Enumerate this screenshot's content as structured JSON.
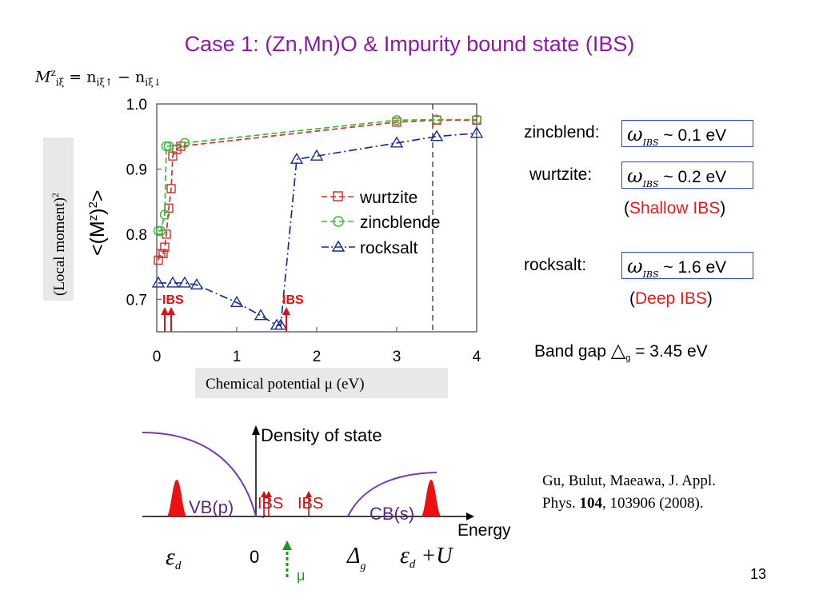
{
  "slide": {
    "title": "Case 1: (Zn,Mn)O & Impurity bound state (IBS)",
    "formula": {
      "M": "M",
      "sub": "iξ",
      "sup": "z",
      "rhs": " = n",
      "sub_up": "iξ↑",
      "minus": " − n",
      "sub_down": "iξ↓"
    },
    "page_number": "13",
    "citation": {
      "line1": "Gu, Bulut, Maeawa, J. Appl.",
      "line2_prefix": "Phys. ",
      "volume": "104",
      "line2_suffix": ", 103906 (2008)."
    }
  },
  "plot": {
    "ylabel": "<(M",
    "ylabel_sup": "z",
    "ylabel_end": ")",
    "ylabel_sup2": "2",
    "ylabel_close": ">",
    "ylabel_box": "(Local moment)",
    "ylabel_box_sup": "2",
    "xlabel_box": "Chemical potential μ (eV)",
    "ibs_label": "IBS"
  },
  "chart_data": {
    "type": "line",
    "xlabel": "Chemical potential μ (eV)",
    "ylabel": "<(Mz)2>",
    "xlim": [
      0,
      4
    ],
    "ylim": [
      0.65,
      1.0
    ],
    "xticks": [
      "0",
      "1",
      "2",
      "3",
      "4"
    ],
    "yticks": [
      "0.7",
      "0.8",
      "0.9",
      "1.0"
    ],
    "legend_position": "center-right",
    "series": [
      {
        "name": "wurtzite",
        "color": "#cc3333",
        "marker": "square",
        "dash": "dashed",
        "points": [
          [
            0.02,
            0.76
          ],
          [
            0.05,
            0.77
          ],
          [
            0.08,
            0.77
          ],
          [
            0.1,
            0.78
          ],
          [
            0.12,
            0.8
          ],
          [
            0.15,
            0.84
          ],
          [
            0.18,
            0.87
          ],
          [
            0.2,
            0.92
          ],
          [
            0.25,
            0.93
          ],
          [
            0.3,
            0.935
          ],
          [
            3.0,
            0.972
          ],
          [
            3.5,
            0.975
          ],
          [
            4.0,
            0.975
          ]
        ]
      },
      {
        "name": "zincblende",
        "color": "#33bb33",
        "marker": "circle",
        "dash": "dashed",
        "points": [
          [
            0.02,
            0.805
          ],
          [
            0.05,
            0.805
          ],
          [
            0.1,
            0.83
          ],
          [
            0.12,
            0.935
          ],
          [
            0.15,
            0.935
          ],
          [
            0.35,
            0.94
          ],
          [
            3.0,
            0.975
          ],
          [
            3.5,
            0.976
          ],
          [
            4.0,
            0.976
          ]
        ]
      },
      {
        "name": "rocksalt",
        "color": "#1a2e8c",
        "marker": "triangle",
        "dash": "dashdot",
        "points": [
          [
            0.02,
            0.725
          ],
          [
            0.2,
            0.725
          ],
          [
            0.35,
            0.725
          ],
          [
            0.5,
            0.722
          ],
          [
            1.0,
            0.695
          ],
          [
            1.3,
            0.675
          ],
          [
            1.5,
            0.66
          ],
          [
            1.55,
            0.66
          ],
          [
            1.75,
            0.915
          ],
          [
            2.0,
            0.92
          ],
          [
            3.0,
            0.94
          ],
          [
            3.5,
            0.95
          ],
          [
            4.0,
            0.955
          ]
        ]
      }
    ],
    "annotations": [
      {
        "text": "IBS",
        "x": 0.25,
        "arrows": [
          0.1,
          0.18
        ]
      },
      {
        "text": "IBS",
        "x": 1.75,
        "arrows": [
          1.62
        ]
      }
    ],
    "vertical_dashed_line": 3.45
  },
  "energies": {
    "zb_label": "zincblend:",
    "wz_label": "wurtzite:",
    "rs_label": "rocksalt:",
    "omega": "ω",
    "omega_sub": "IBS",
    "zb_value": " ~ 0.1 eV",
    "wz_value": " ~ 0.2 eV",
    "rs_value": " ~ 1.6 eV",
    "shallow_open": "(",
    "shallow": "Shallow IBS",
    "shallow_close": ")",
    "deep_open": "(",
    "deep": "Deep IBS",
    "deep_close": ")",
    "bandgap_label": "Band gap ",
    "bandgap_sym": "△",
    "bandgap_sub": "g",
    "bandgap_value": " = 3.45 eV"
  },
  "dos": {
    "title": "Density of state",
    "vb": "VB(p)",
    "cb": "CB(s)",
    "ibs1": "IBS",
    "ibs2": "IBS",
    "energy": "Energy",
    "eps_d": "ε",
    "eps_sub": "d",
    "zero": "0",
    "delta": "Δ",
    "delta_sub": "g",
    "eps_u_sub": "d",
    "eps_u_plus": " +U",
    "mu": "μ"
  }
}
